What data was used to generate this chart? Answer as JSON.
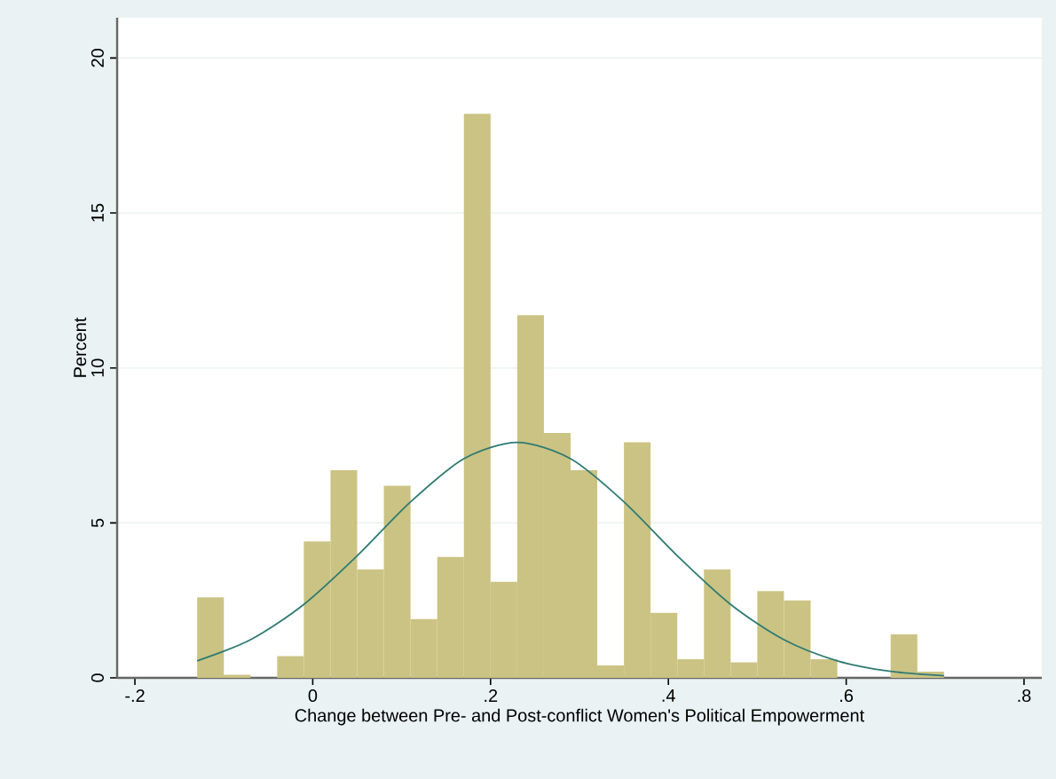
{
  "chart_data": {
    "type": "histogram",
    "xlabel": "Change between Pre- and Post-conflict Women's Political Empowerment",
    "ylabel": "Percent",
    "bins": [
      -0.13,
      -0.1,
      -0.07,
      -0.04,
      -0.01,
      0.02,
      0.05,
      0.08,
      0.11,
      0.14,
      0.17,
      0.2,
      0.23,
      0.26,
      0.29,
      0.32,
      0.35,
      0.38,
      0.41,
      0.44,
      0.47,
      0.5,
      0.53,
      0.56,
      0.59,
      0.62,
      0.65,
      0.68,
      0.71
    ],
    "values": [
      2.6,
      0.1,
      0,
      0.7,
      4.4,
      6.7,
      3.5,
      6.2,
      1.9,
      3.9,
      18.2,
      3.1,
      11.7,
      7.9,
      6.7,
      0.4,
      7.6,
      2.1,
      0.6,
      3.5,
      0.5,
      2.8,
      2.5,
      0.6,
      0,
      0,
      1.4,
      0.2
    ],
    "color": "#cbc383",
    "series": [
      {
        "type": "line",
        "color": "#2e7a73",
        "x": [
          -0.13,
          -0.07,
          -0.01,
          0.05,
          0.11,
          0.17,
          0.23,
          0.29,
          0.35,
          0.41,
          0.47,
          0.53,
          0.59,
          0.65,
          0.71
        ],
        "values": [
          0.55,
          1.23,
          2.37,
          3.94,
          5.68,
          7.07,
          7.6,
          7.07,
          5.68,
          3.94,
          2.37,
          1.23,
          0.55,
          0.21,
          0.07
        ]
      }
    ],
    "xlim": [
      -0.22,
      0.82
    ],
    "ylim": [
      0,
      21.3
    ],
    "xticks": [
      {
        "value": -0.2,
        "label": "-.2"
      },
      0,
      {
        "value": 0.2,
        "label": ".2"
      },
      {
        "value": 0.4,
        "label": ".4"
      },
      {
        "value": 0.6,
        "label": ".6"
      },
      {
        "value": 0.8,
        "label": ".8"
      }
    ],
    "yticks": [
      0,
      5,
      10,
      15,
      20
    ],
    "grid": "y"
  }
}
